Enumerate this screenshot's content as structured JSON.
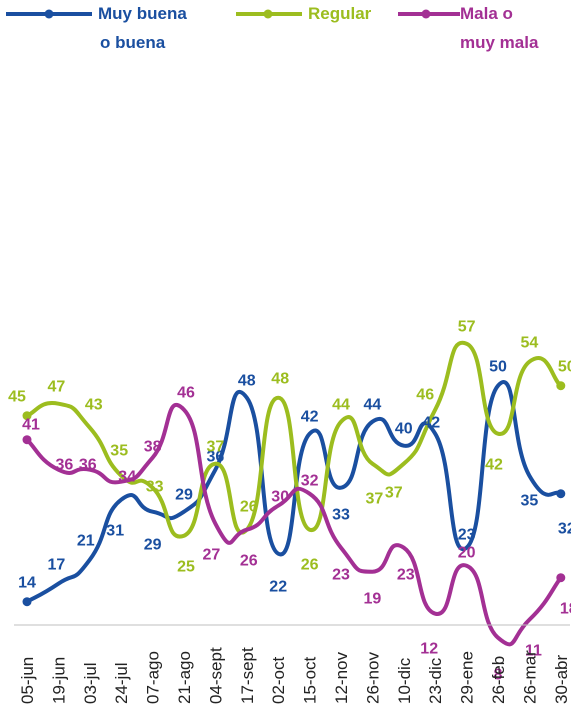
{
  "chart_data": {
    "type": "line",
    "title": "",
    "xlabel": "",
    "ylabel": "",
    "ylim": [
      0,
      100
    ],
    "grid": false,
    "legend_position": "top",
    "categories": [
      "05-jun",
      "19-jun",
      "03-jul",
      "24-jul",
      "07-ago",
      "21-ago",
      "04-sept",
      "17-sept",
      "02-oct",
      "15-oct",
      "12-nov",
      "26-nov",
      "10-dic",
      "23-dic",
      "29-ene",
      "26-feb",
      "26-mar",
      "30-abr"
    ],
    "series": [
      {
        "name": "Muy buena o buena",
        "legend_lines": [
          "Muy buena",
          "o buena"
        ],
        "color": "#1a4fa0",
        "values": [
          14,
          17,
          21,
          31,
          29,
          29,
          36,
          48,
          22,
          42,
          33,
          44,
          40,
          42,
          23,
          50,
          35,
          32
        ]
      },
      {
        "name": "Regular",
        "legend_lines": [
          "Regular"
        ],
        "color": "#9cbd1f",
        "values": [
          45,
          47,
          43,
          35,
          33,
          25,
          37,
          26,
          48,
          26,
          44,
          37,
          37,
          46,
          57,
          42,
          54,
          50
        ]
      },
      {
        "name": "Mala o muy mala",
        "legend_lines": [
          "Mala o",
          "muy mala"
        ],
        "color": "#a33094",
        "values": [
          41,
          36,
          36,
          34,
          38,
          46,
          27,
          26,
          30,
          32,
          23,
          19,
          23,
          12,
          20,
          8,
          11,
          18
        ]
      }
    ]
  }
}
